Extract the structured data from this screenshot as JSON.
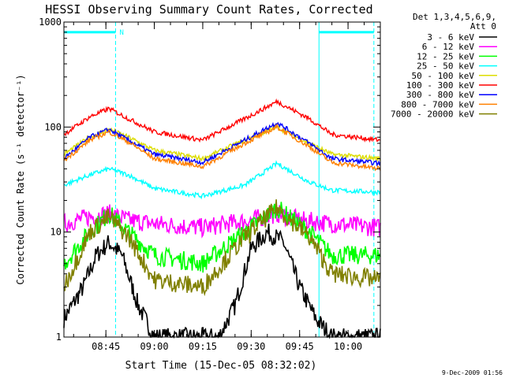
{
  "chart_data": {
    "type": "line",
    "title": "HESSI Observing Summary Count Rates, Corrected",
    "xlabel": "Start Time (15-Dec-05 08:32:02)",
    "ylabel": "Corrected Count Rate (s⁻¹ detector⁻¹)",
    "y_scale": "log",
    "ylim": [
      1,
      1000
    ],
    "xlim": [
      "08:32",
      "10:10"
    ],
    "x_ticks": [
      "08:45",
      "09:00",
      "09:15",
      "09:30",
      "09:45",
      "10:00"
    ],
    "y_ticks": [
      "1",
      "10",
      "100",
      "1000"
    ],
    "grid": false,
    "legend_position": "right",
    "legend_header": [
      "Det 1,3,4,5,6,9,",
      "Att 0"
    ],
    "series": [
      {
        "name": "3 - 6 keV",
        "color": "#000000",
        "x": [
          "08:32",
          "08:38",
          "08:42",
          "08:46",
          "08:50",
          "08:55",
          "09:00",
          "09:10",
          "09:20",
          "09:25",
          "09:30",
          "09:35",
          "09:40",
          "09:45",
          "09:50",
          "09:55",
          "10:00",
          "10:10"
        ],
        "y": [
          1.5,
          3,
          6,
          8,
          6,
          2,
          1,
          1,
          1,
          2,
          7,
          10,
          8,
          3,
          1.5,
          1,
          1,
          1
        ]
      },
      {
        "name": "6 - 12 keV",
        "color": "#ff00ff",
        "x": [
          "08:32",
          "08:40",
          "08:46",
          "08:52",
          "09:00",
          "09:15",
          "09:30",
          "09:38",
          "09:45",
          "09:55",
          "10:10"
        ],
        "y": [
          12,
          14,
          15,
          13,
          12,
          11,
          13,
          15,
          13,
          12,
          11
        ]
      },
      {
        "name": "12 - 25 keV",
        "color": "#00ff00",
        "x": [
          "08:32",
          "08:40",
          "08:46",
          "08:52",
          "09:00",
          "09:15",
          "09:28",
          "09:38",
          "09:48",
          "09:55",
          "10:10"
        ],
        "y": [
          5,
          10,
          15,
          10,
          6,
          5,
          10,
          17,
          10,
          6,
          6
        ]
      },
      {
        "name": "25 - 50 keV",
        "color": "#00ffff",
        "x": [
          "08:32",
          "08:40",
          "08:46",
          "08:52",
          "09:00",
          "09:15",
          "09:28",
          "09:38",
          "09:48",
          "09:55",
          "10:10"
        ],
        "y": [
          28,
          35,
          40,
          35,
          26,
          22,
          28,
          45,
          30,
          25,
          24
        ]
      },
      {
        "name": "50 - 100 keV",
        "color": "#dddd00",
        "x": [
          "08:32",
          "08:40",
          "08:46",
          "08:52",
          "09:00",
          "09:15",
          "09:28",
          "09:38",
          "09:48",
          "09:55",
          "10:10"
        ],
        "y": [
          55,
          80,
          95,
          80,
          60,
          50,
          75,
          100,
          70,
          55,
          50
        ]
      },
      {
        "name": "100 - 300 keV",
        "color": "#ff0000",
        "x": [
          "08:32",
          "08:40",
          "08:46",
          "08:52",
          "09:00",
          "09:15",
          "09:28",
          "09:38",
          "09:48",
          "09:55",
          "10:10"
        ],
        "y": [
          85,
          125,
          150,
          120,
          90,
          75,
          120,
          175,
          120,
          85,
          75
        ]
      },
      {
        "name": "300 - 800 keV",
        "color": "#0000ff",
        "x": [
          "08:32",
          "08:40",
          "08:46",
          "08:52",
          "09:00",
          "09:15",
          "09:28",
          "09:38",
          "09:48",
          "09:55",
          "10:10"
        ],
        "y": [
          50,
          80,
          95,
          75,
          55,
          46,
          75,
          110,
          70,
          50,
          45
        ]
      },
      {
        "name": "800 - 7000 keV",
        "color": "#ff8000",
        "x": [
          "08:32",
          "08:40",
          "08:46",
          "08:52",
          "09:00",
          "09:15",
          "09:28",
          "09:38",
          "09:48",
          "09:55",
          "10:10"
        ],
        "y": [
          48,
          75,
          90,
          72,
          50,
          42,
          70,
          100,
          65,
          46,
          40
        ]
      },
      {
        "name": "7000 - 20000 keV",
        "color": "#808000",
        "x": [
          "08:32",
          "08:40",
          "08:46",
          "08:52",
          "09:00",
          "09:15",
          "09:28",
          "09:38",
          "09:48",
          "09:55",
          "10:10"
        ],
        "y": [
          3,
          10,
          14,
          9,
          3.5,
          3,
          9,
          17,
          9,
          4,
          3.5
        ]
      }
    ],
    "annotations": [
      {
        "text": "N",
        "color": "#00ffff",
        "x": "08:48"
      }
    ],
    "top_bars": {
      "color": "#00ffff",
      "y": 800,
      "ranges": [
        [
          "08:32",
          "08:48"
        ],
        [
          "09:51",
          "10:08"
        ]
      ]
    },
    "vertical_markers": {
      "color": "#00ffff",
      "solid": [
        "09:51"
      ],
      "dashed": [
        "08:48",
        "10:08"
      ]
    }
  },
  "footer": {
    "timestamp": "9-Dec-2009 01:56"
  }
}
